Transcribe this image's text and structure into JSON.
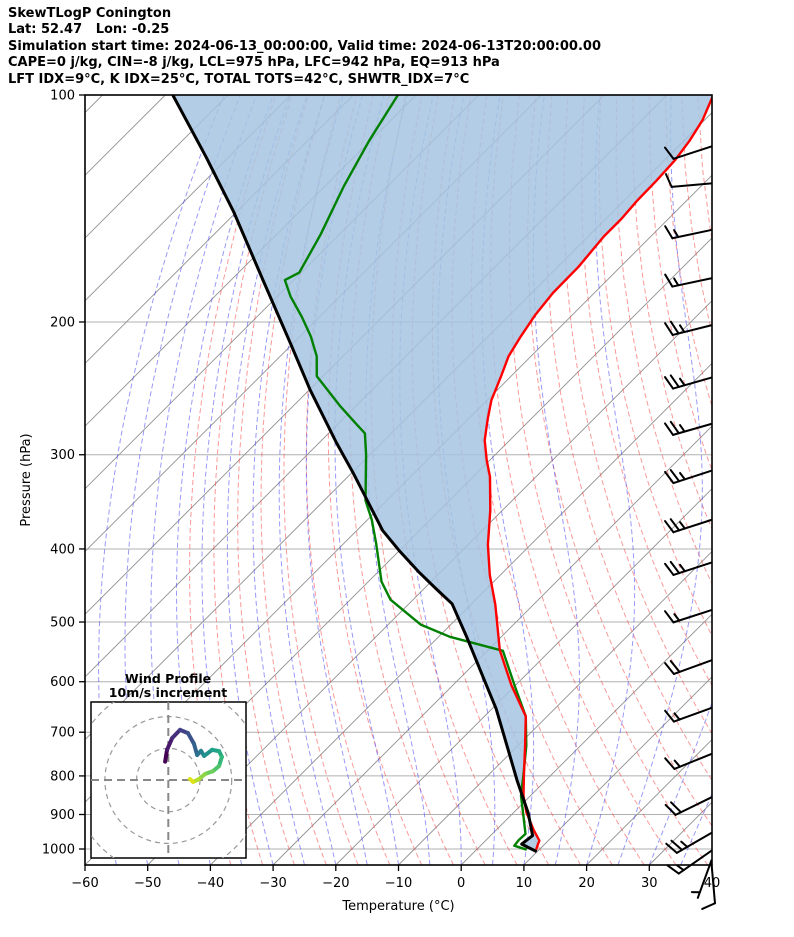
{
  "header": {
    "line1": "SkewTLogP Conington",
    "line2": "Lat: 52.47   Lon: -0.25",
    "line3": "Simulation start time: 2024-06-13_00:00:00, Valid time: 2024-06-13T20:00:00.00",
    "line4": "CAPE=0 j/kg, CIN=-8 j/kg, LCL=975 hPa, LFC=942 hPa, EQ=913 hPa",
    "line5": "LFT IDX=9°C, K IDX=25°C, TOTAL TOTS=42°C, SHWTR_IDX=7°C"
  },
  "chart_data": {
    "type": "skewt-logp",
    "xlabel": "Temperature (°C)",
    "ylabel": "Pressure (hPa)",
    "x_ticks": [
      -60,
      -50,
      -40,
      -30,
      -20,
      -10,
      0,
      10,
      20,
      30,
      40
    ],
    "y_ticks": [
      100,
      200,
      300,
      400,
      500,
      600,
      700,
      800,
      900,
      1000
    ],
    "xlim": [
      -60,
      40
    ],
    "plim": [
      100,
      1050
    ],
    "isotherm_step_c": 10,
    "dry_adiabat_step_c": 5,
    "moist_adiabat_step_c": 5,
    "series": [
      {
        "name": "temperature",
        "color": "#ff0000",
        "points_p_t": [
          [
            1002,
            9.5
          ],
          [
            985,
            8.9
          ],
          [
            975,
            8.6
          ],
          [
            944,
            6.0
          ],
          [
            894,
            2.0
          ],
          [
            850,
            -1.1
          ],
          [
            800,
            -4.2
          ],
          [
            730,
            -8.8
          ],
          [
            667,
            -13.4
          ],
          [
            607,
            -20.6
          ],
          [
            545,
            -28.1
          ],
          [
            474,
            -36.1
          ],
          [
            433,
            -41.7
          ],
          [
            395,
            -46.8
          ],
          [
            355,
            -52.0
          ],
          [
            321,
            -57.3
          ],
          [
            305,
            -60.5
          ],
          [
            287,
            -64.0
          ],
          [
            269,
            -66.9
          ],
          [
            254,
            -69.3
          ],
          [
            236,
            -71.6
          ],
          [
            222,
            -73.6
          ],
          [
            209,
            -74.8
          ],
          [
            196,
            -75.9
          ],
          [
            183,
            -76.6
          ],
          [
            169,
            -76.7
          ],
          [
            154,
            -77.5
          ],
          [
            146,
            -77.5
          ],
          [
            138,
            -77.9
          ],
          [
            130,
            -78.0
          ],
          [
            122,
            -78.3
          ],
          [
            115,
            -79.1
          ],
          [
            108,
            -80.3
          ],
          [
            100,
            -82.6
          ]
        ]
      },
      {
        "name": "dewpoint",
        "color": "#008000",
        "points_p_t": [
          [
            1002,
            8.0
          ],
          [
            990,
            5.4
          ],
          [
            973,
            5.2
          ],
          [
            955,
            5.3
          ],
          [
            901,
            1.9
          ],
          [
            850,
            -1.5
          ],
          [
            800,
            -4.3
          ],
          [
            730,
            -8.6
          ],
          [
            667,
            -13.4
          ],
          [
            607,
            -20.1
          ],
          [
            546,
            -27.5
          ],
          [
            523,
            -38.2
          ],
          [
            504,
            -44.8
          ],
          [
            467,
            -53.6
          ],
          [
            442,
            -57.9
          ],
          [
            393,
            -64.9
          ],
          [
            366,
            -69.3
          ],
          [
            345,
            -73.4
          ],
          [
            300,
            -80.6
          ],
          [
            281,
            -84.2
          ],
          [
            273,
            -87.1
          ],
          [
            258,
            -92.7
          ],
          [
            236,
            -101.0
          ],
          [
            222,
            -104.2
          ],
          [
            209,
            -108.3
          ],
          [
            197,
            -112.8
          ],
          [
            185,
            -117.9
          ],
          [
            176,
            -121.4
          ],
          [
            172,
            -120.3
          ],
          [
            153,
            -123.0
          ],
          [
            132,
            -127.0
          ],
          [
            115,
            -130.2
          ],
          [
            100,
            -132.9
          ]
        ]
      },
      {
        "name": "parcel",
        "color": "#000000",
        "points_p_t": [
          [
            1008,
            9.9
          ],
          [
            985,
            6.3
          ],
          [
            960,
            6.7
          ],
          [
            896,
            2.4
          ],
          [
            812,
            -4.5
          ],
          [
            732,
            -11.5
          ],
          [
            652,
            -19.3
          ],
          [
            585,
            -27.3
          ],
          [
            524,
            -35.4
          ],
          [
            473,
            -43.1
          ],
          [
            452,
            -48.0
          ],
          [
            430,
            -53.3
          ],
          [
            403,
            -59.8
          ],
          [
            378,
            -65.9
          ],
          [
            345,
            -73.1
          ],
          [
            317,
            -79.8
          ],
          [
            289,
            -87.3
          ],
          [
            246,
            -99.9
          ],
          [
            213,
            -110.6
          ],
          [
            176,
            -124.9
          ],
          [
            143,
            -140.4
          ],
          [
            121,
            -153.5
          ],
          [
            100,
            -168.8
          ]
        ]
      }
    ],
    "shaded_area": {
      "between": [
        "parcel",
        "temperature"
      ],
      "color": "#a4c4e0",
      "opacity": 0.85
    },
    "wind_barbs": {
      "units": "m/s per 10 (full feather)",
      "list": [
        {
          "pressure": 117,
          "speed": 10,
          "tilt": 18
        },
        {
          "pressure": 131,
          "speed": 10,
          "tilt": 5
        },
        {
          "pressure": 151,
          "speed": 15,
          "tilt": 12
        },
        {
          "pressure": 175,
          "speed": 15,
          "tilt": 12
        },
        {
          "pressure": 202,
          "speed": 25,
          "tilt": 14
        },
        {
          "pressure": 237,
          "speed": 25,
          "tilt": 16
        },
        {
          "pressure": 273,
          "speed": 25,
          "tilt": 16
        },
        {
          "pressure": 315,
          "speed": 25,
          "tilt": 18
        },
        {
          "pressure": 366,
          "speed": 25,
          "tilt": 18
        },
        {
          "pressure": 417,
          "speed": 25,
          "tilt": 18
        },
        {
          "pressure": 482,
          "speed": 15,
          "tilt": 18
        },
        {
          "pressure": 562,
          "speed": 20,
          "tilt": 20
        },
        {
          "pressure": 650,
          "speed": 15,
          "tilt": 20
        },
        {
          "pressure": 748,
          "speed": 15,
          "tilt": 22
        },
        {
          "pressure": 854,
          "speed": 20,
          "tilt": 26
        },
        {
          "pressure": 952,
          "speed": 25,
          "tilt": 30
        },
        {
          "pressure": 1005,
          "speed": 15,
          "tilt": 35
        },
        {
          "pressure": 1035,
          "speed": 5,
          "tilt": 70
        },
        {
          "pressure": 1045,
          "speed": 10,
          "tilt": 95
        }
      ]
    },
    "hodograph": {
      "title_line1": "Wind Profile",
      "title_line2": "10m/s increment",
      "ring_interval": 10,
      "rings": [
        10,
        20,
        30
      ],
      "points_uv": [
        [
          -1.0,
          5.8
        ],
        [
          -0.4,
          9.5
        ],
        [
          1.2,
          13.2
        ],
        [
          3.7,
          15.8
        ],
        [
          6.2,
          14.8
        ],
        [
          8.1,
          11.4
        ],
        [
          9.1,
          7.9
        ],
        [
          10.3,
          9.2
        ],
        [
          11.3,
          7.6
        ],
        [
          13.8,
          9.5
        ],
        [
          16.0,
          9.1
        ],
        [
          16.9,
          7.3
        ],
        [
          16.0,
          4.4
        ],
        [
          14.1,
          2.8
        ],
        [
          11.6,
          1.9
        ],
        [
          9.7,
          0.3
        ],
        [
          7.8,
          -0.6
        ],
        [
          6.8,
          0.3
        ]
      ],
      "path_colors": [
        "#440154",
        "#48186a",
        "#472d7b",
        "#424086",
        "#3b528b",
        "#33638d",
        "#2c728e",
        "#26828e",
        "#21918c",
        "#1fa088",
        "#25ab82",
        "#35b779",
        "#4ec36b",
        "#6ccd5a",
        "#8ed645",
        "#b5de2b",
        "#dde318"
      ]
    },
    "style": {
      "isotherm_color": "#909090",
      "gridline_color": "#b0b0b0",
      "dry_adiabat_color": "rgba(245,70,70,0.55)",
      "moist_adiabat_color": "rgba(70,70,240,0.55)",
      "fill_color": "#a4c4e0",
      "temperature_color": "#ff0000",
      "dewpoint_color": "#008000",
      "parcel_color": "#000000",
      "barb_color": "#000000"
    }
  }
}
